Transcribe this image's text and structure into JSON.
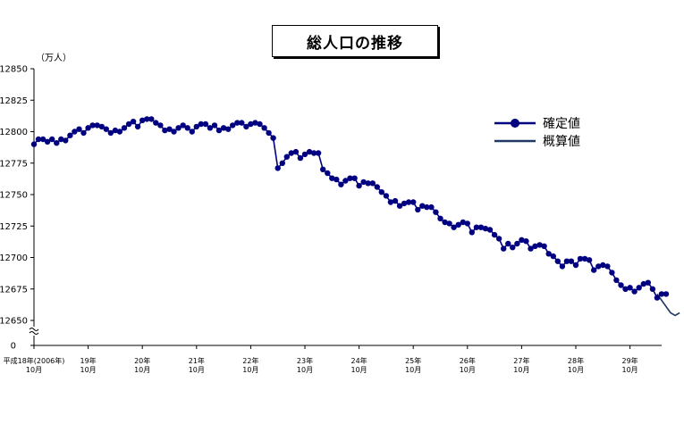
{
  "chart_data": {
    "type": "line",
    "title": "総人口の推移",
    "unit": "（万人）",
    "ylim": [
      12650,
      12850
    ],
    "yticks": [
      12850,
      12825,
      12800,
      12775,
      12750,
      12725,
      12700,
      12675,
      12650
    ],
    "y_zero_label": "0",
    "xlabels": [
      {
        "year": "平成18年(2006年)",
        "month": "10月"
      },
      {
        "year": "19年",
        "month": "10月"
      },
      {
        "year": "20年",
        "month": "10月"
      },
      {
        "year": "21年",
        "month": "10月"
      },
      {
        "year": "22年",
        "month": "10月"
      },
      {
        "year": "23年",
        "month": "10月"
      },
      {
        "year": "24年",
        "month": "10月"
      },
      {
        "year": "25年",
        "month": "10月"
      },
      {
        "year": "26年",
        "month": "10月"
      },
      {
        "year": "27年",
        "month": "10月"
      },
      {
        "year": "28年",
        "month": "10月"
      },
      {
        "year": "29年",
        "month": "10月"
      }
    ],
    "series": [
      {
        "name": "確定値",
        "color": "#000080",
        "marker": "circle",
        "start": "2006-10",
        "step": "month",
        "values": [
          12790,
          12794,
          12794,
          12792,
          12794,
          12791,
          12794,
          12793,
          12797,
          12800,
          12802,
          12799,
          12803,
          12805,
          12805,
          12804,
          12802,
          12799,
          12801,
          12800,
          12803,
          12806,
          12808,
          12804,
          12809,
          12810,
          12810,
          12807,
          12805,
          12801,
          12802,
          12800,
          12803,
          12805,
          12803,
          12800,
          12804,
          12806,
          12806,
          12803,
          12805,
          12801,
          12803,
          12802,
          12805,
          12807,
          12807,
          12804,
          12806,
          12807,
          12806,
          12803,
          12799,
          12795,
          12771,
          12775,
          12780,
          12783,
          12784,
          12779,
          12782,
          12784,
          12783,
          12783,
          12770,
          12767,
          12763,
          12762,
          12758,
          12761,
          12763,
          12763,
          12757,
          12760,
          12759,
          12759,
          12756,
          12752,
          12749,
          12744,
          12745,
          12741,
          12743,
          12744,
          12744,
          12738,
          12741,
          12740,
          12740,
          12736,
          12731,
          12728,
          12727,
          12724,
          12726,
          12728,
          12727,
          12720,
          12724,
          12724,
          12723,
          12722,
          12718,
          12715,
          12707,
          12711,
          12708,
          12711,
          12714,
          12713,
          12707,
          12709,
          12710,
          12709,
          12703,
          12701,
          12697,
          12693,
          12697,
          12697,
          12694,
          12699,
          12699,
          12698,
          12690,
          12693,
          12694,
          12693,
          12688,
          12682,
          12678,
          12675,
          12676,
          12673,
          12676,
          12679,
          12680,
          12675,
          12668,
          12671,
          12671
        ]
      },
      {
        "name": "概算値",
        "color": "#1f3864",
        "start": "2018-04",
        "step": "month",
        "values": [
          12671,
          12666,
          12661,
          12656,
          12654,
          12656
        ]
      }
    ],
    "legend": "right",
    "grid": false
  }
}
